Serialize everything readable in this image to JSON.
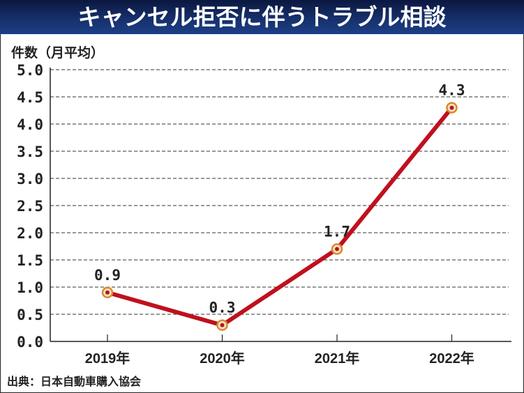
{
  "chart_data": {
    "type": "line",
    "title": "キャンセル拒否に伴うトラブル相談",
    "ylabel": "件数（月平均）",
    "xlabel": "",
    "categories": [
      "2019年",
      "2020年",
      "2021年",
      "2022年"
    ],
    "series": [
      {
        "name": "件数（月平均）",
        "values": [
          0.9,
          0.3,
          1.7,
          4.3
        ],
        "labels": [
          "0.9",
          "0.3",
          "1.7",
          "4.3"
        ]
      }
    ],
    "ylim": [
      0,
      5.0
    ],
    "yticks": [
      0.0,
      0.5,
      1.0,
      1.5,
      2.0,
      2.5,
      3.0,
      3.5,
      4.0,
      4.5,
      5.0
    ],
    "ytick_labels": [
      "0.0",
      "0.5",
      "1.0",
      "1.5",
      "2.0",
      "2.5",
      "3.0",
      "3.5",
      "4.0",
      "4.5",
      "5.0"
    ],
    "grid": true,
    "source": "出典：日本自動車購入協会",
    "colors": {
      "line": "#c0101e",
      "marker_ring": "#d98a2b",
      "marker_fill": "#f6e4c8",
      "marker_dot": "#c0101e",
      "title_bg": "#16306b"
    }
  }
}
